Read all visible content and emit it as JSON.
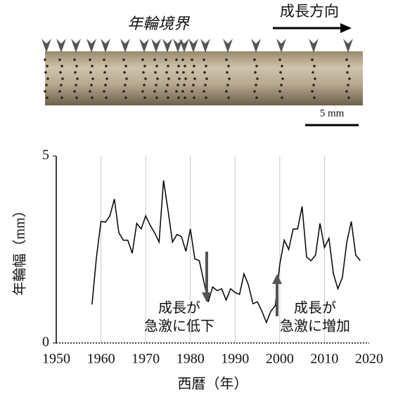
{
  "photo": {
    "boundary_label": "年輪境界",
    "direction_label": "成長方向",
    "scale_label": "5 mm"
  },
  "chart_data": {
    "type": "line",
    "x_label": "西暦（年）",
    "y_label": "年輪幅（mm）",
    "x": [
      1958,
      1959,
      1960,
      1961,
      1962,
      1963,
      1964,
      1965,
      1966,
      1967,
      1968,
      1969,
      1970,
      1971,
      1972,
      1973,
      1974,
      1975,
      1976,
      1977,
      1978,
      1979,
      1980,
      1981,
      1982,
      1983,
      1984,
      1985,
      1986,
      1987,
      1988,
      1989,
      1990,
      1991,
      1992,
      1993,
      1994,
      1995,
      1996,
      1997,
      1998,
      1999,
      2000,
      2001,
      2002,
      2003,
      2004,
      2005,
      2006,
      2007,
      2008,
      2009,
      2010,
      2011,
      2012,
      2013,
      2014,
      2015,
      2016,
      2017,
      2018
    ],
    "values": [
      1.03,
      2.3,
      3.25,
      3.23,
      3.4,
      3.85,
      2.95,
      2.75,
      2.75,
      2.4,
      3.2,
      3.05,
      3.4,
      3.15,
      2.95,
      2.7,
      4.35,
      3.55,
      2.7,
      2.9,
      2.85,
      2.45,
      3.05,
      2.25,
      2.2,
      1.65,
      1.1,
      1.5,
      1.4,
      1.45,
      1.15,
      1.45,
      1.35,
      1.3,
      1.85,
      1.55,
      1.05,
      1.1,
      0.85,
      0.55,
      0.85,
      1.0,
      2.1,
      2.75,
      2.5,
      3.05,
      3.05,
      3.65,
      2.3,
      2.2,
      2.35,
      3.2,
      2.55,
      2.8,
      1.85,
      1.45,
      1.75,
      2.7,
      3.25,
      2.35,
      2.2
    ],
    "color": "#000000",
    "xlim": [
      1950,
      2020
    ],
    "xticks": [
      1950,
      1960,
      1970,
      1980,
      1990,
      2000,
      2010,
      2020
    ],
    "ylim": [
      0,
      5
    ],
    "yticks": [
      0,
      5
    ],
    "grid": true,
    "annotations": [
      {
        "lines": [
          "成長が",
          "急激に低下"
        ]
      },
      {
        "lines": [
          "成長が",
          "急激に増加"
        ]
      }
    ]
  }
}
